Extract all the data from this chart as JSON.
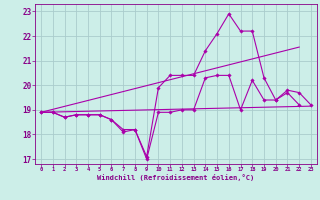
{
  "bg_color": "#cceee8",
  "grid_color": "#aacccc",
  "line_color": "#aa00aa",
  "xlim": [
    -0.5,
    23.5
  ],
  "ylim": [
    16.8,
    23.3
  ],
  "xticks": [
    0,
    1,
    2,
    3,
    4,
    5,
    6,
    7,
    8,
    9,
    10,
    11,
    12,
    13,
    14,
    15,
    16,
    17,
    18,
    19,
    20,
    21,
    22,
    23
  ],
  "yticks": [
    17,
    18,
    19,
    20,
    21,
    22,
    23
  ],
  "xlabel": "Windchill (Refroidissement éolien,°C)",
  "series": [
    {
      "x": [
        0,
        1,
        2,
        3,
        4,
        5,
        6,
        7,
        8,
        9,
        10,
        11,
        12,
        13,
        14,
        15,
        16,
        17,
        18,
        19,
        20,
        21,
        22,
        23
      ],
      "y": [
        18.9,
        18.9,
        18.7,
        18.8,
        18.8,
        18.8,
        18.6,
        18.2,
        18.2,
        17.1,
        19.9,
        20.4,
        20.4,
        20.4,
        21.4,
        22.1,
        22.9,
        22.2,
        22.2,
        20.3,
        19.4,
        19.8,
        19.7,
        19.2
      ],
      "marker": true
    },
    {
      "x": [
        0,
        1,
        2,
        3,
        4,
        5,
        6,
        7,
        8,
        9,
        10,
        11,
        12,
        13,
        14,
        15,
        16,
        17,
        18,
        19,
        20,
        21,
        22
      ],
      "y": [
        18.9,
        18.9,
        18.7,
        18.8,
        18.8,
        18.8,
        18.6,
        18.1,
        18.2,
        17.0,
        18.9,
        18.9,
        19.0,
        19.0,
        20.3,
        20.4,
        20.4,
        19.0,
        20.2,
        19.4,
        19.4,
        19.7,
        19.2
      ],
      "marker": true
    },
    {
      "x": [
        0,
        23
      ],
      "y": [
        18.9,
        19.15
      ],
      "marker": false
    },
    {
      "x": [
        0,
        22
      ],
      "y": [
        18.9,
        21.55
      ],
      "marker": false
    }
  ]
}
